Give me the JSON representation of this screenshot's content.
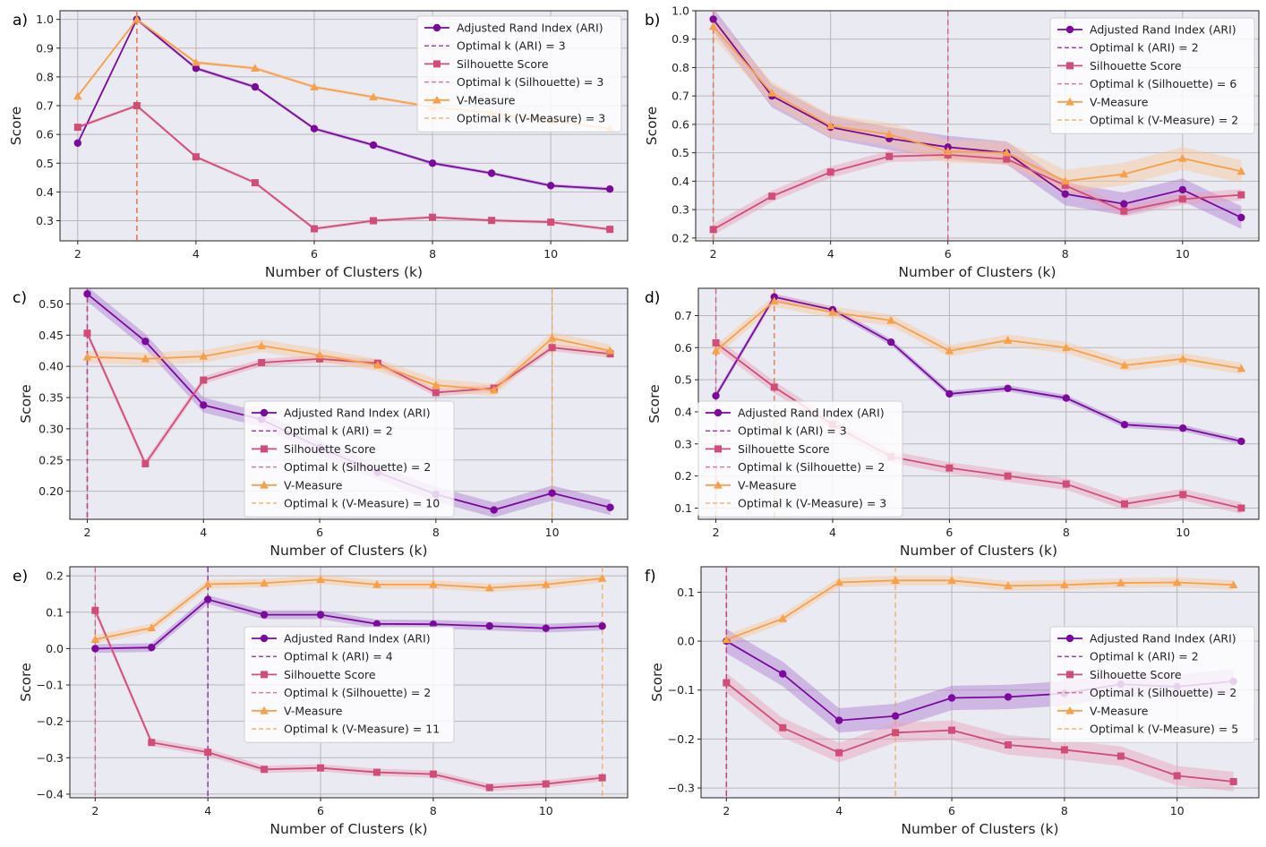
{
  "figure": {
    "panel_count": 6
  },
  "colors": {
    "ari": "#7b0a9c",
    "ari_band": "#b07ad0",
    "sil": "#d14d78",
    "sil_band": "#e8a0b6",
    "vm": "#f7a04a",
    "vm_band": "#f8c79a",
    "axes_bg": "#eaeaf2",
    "grid": "#b8b8b8"
  },
  "chart_data": [
    {
      "panel_label": "a)",
      "type": "line",
      "xlabel": "Number of Clusters (k)",
      "ylabel": "Score",
      "xlim": [
        1.7,
        11.3
      ],
      "ylim": [
        0.23,
        1.03
      ],
      "xticks": [
        2,
        4,
        6,
        8,
        10
      ],
      "xtick_labels": [
        "2",
        "4",
        "6",
        "8",
        "10"
      ],
      "yticks": [
        0.3,
        0.4,
        0.5,
        0.6,
        0.7,
        0.8,
        0.9,
        1.0
      ],
      "ytick_labels": [
        "0.3",
        "0.4",
        "0.5",
        "0.6",
        "0.7",
        "0.8",
        "0.9",
        "1.0"
      ],
      "x": [
        2,
        3,
        4,
        5,
        6,
        7,
        8,
        9,
        10,
        11
      ],
      "legend_position": "top-right",
      "series": [
        {
          "key": "ari",
          "name": "Adjusted Rand Index (ARI)",
          "marker": "circle",
          "values": [
            0.57,
            1.0,
            0.83,
            0.765,
            0.62,
            0.563,
            0.5,
            0.465,
            0.422,
            0.41
          ],
          "band": 0.006
        },
        {
          "key": "sil",
          "name": "Silhouette Score",
          "marker": "square",
          "values": [
            0.625,
            0.7,
            0.522,
            0.432,
            0.272,
            0.3,
            0.312,
            0.301,
            0.295,
            0.27
          ],
          "band": 0.006
        },
        {
          "key": "vm",
          "name": "V-Measure",
          "marker": "triangle",
          "values": [
            0.733,
            1.0,
            0.85,
            0.83,
            0.765,
            0.73,
            0.695,
            0.675,
            0.648,
            0.62
          ],
          "band": 0.006
        }
      ],
      "optimal_lines": [
        {
          "key": "ari",
          "label": "Optimal k (ARI) = 3",
          "k": 3
        },
        {
          "key": "sil",
          "label": "Optimal k (Silhouette) = 3",
          "k": 3
        },
        {
          "key": "vm",
          "label": "Optimal k (V-Measure) = 3",
          "k": 3
        }
      ]
    },
    {
      "panel_label": "b)",
      "type": "line",
      "xlabel": "Number of Clusters (k)",
      "ylabel": "Score",
      "xlim": [
        1.7,
        11.3
      ],
      "ylim": [
        0.19,
        1.0
      ],
      "xticks": [
        2,
        4,
        6,
        8,
        10
      ],
      "xtick_labels": [
        "2",
        "4",
        "6",
        "8",
        "10"
      ],
      "yticks": [
        0.2,
        0.3,
        0.4,
        0.5,
        0.6,
        0.7,
        0.8,
        0.9,
        1.0
      ],
      "ytick_labels": [
        "0.2",
        "0.3",
        "0.4",
        "0.5",
        "0.6",
        "0.7",
        "0.8",
        "0.9",
        "1.0"
      ],
      "x": [
        2,
        3,
        4,
        5,
        6,
        7,
        8,
        9,
        10,
        11
      ],
      "legend_position": "top-right",
      "series": [
        {
          "key": "ari",
          "name": "Adjusted Rand Index (ARI)",
          "marker": "circle",
          "values": [
            0.97,
            0.7,
            0.59,
            0.55,
            0.52,
            0.5,
            0.355,
            0.32,
            0.37,
            0.272
          ],
          "band": 0.04
        },
        {
          "key": "sil",
          "name": "Silhouette Score",
          "marker": "square",
          "values": [
            0.23,
            0.347,
            0.432,
            0.487,
            0.493,
            0.478,
            0.385,
            0.295,
            0.337,
            0.352
          ],
          "band": 0.02
        },
        {
          "key": "vm",
          "name": "V-Measure",
          "marker": "triangle",
          "values": [
            0.945,
            0.71,
            0.595,
            0.565,
            0.505,
            0.5,
            0.4,
            0.425,
            0.48,
            0.435
          ],
          "band": 0.04
        }
      ],
      "optimal_lines": [
        {
          "key": "ari",
          "label": "Optimal k (ARI) = 2",
          "k": 2
        },
        {
          "key": "sil",
          "label": "Optimal k (Silhouette) = 6",
          "k": 6
        },
        {
          "key": "vm",
          "label": "Optimal k (V-Measure) = 2",
          "k": 2
        }
      ]
    },
    {
      "panel_label": "c)",
      "type": "line",
      "xlabel": "Number of Clusters (k)",
      "ylabel": "Score",
      "xlim": [
        1.7,
        11.3
      ],
      "ylim": [
        0.155,
        0.525
      ],
      "xticks": [
        2,
        4,
        6,
        8,
        10
      ],
      "xtick_labels": [
        "2",
        "4",
        "6",
        "8",
        "10"
      ],
      "yticks": [
        0.2,
        0.25,
        0.3,
        0.35,
        0.4,
        0.45,
        0.5
      ],
      "ytick_labels": [
        "0.20",
        "0.25",
        "0.30",
        "0.35",
        "0.40",
        "0.45",
        "0.50"
      ],
      "x": [
        2,
        3,
        4,
        5,
        6,
        7,
        8,
        9,
        10,
        11
      ],
      "legend_position": "center",
      "series": [
        {
          "key": "ari",
          "name": "Adjusted Rand Index (ARI)",
          "marker": "circle",
          "values": [
            0.516,
            0.44,
            0.338,
            0.315,
            0.27,
            0.23,
            0.195,
            0.17,
            0.197,
            0.174
          ],
          "band": 0.012
        },
        {
          "key": "sil",
          "name": "Silhouette Score",
          "marker": "square",
          "values": [
            0.453,
            0.244,
            0.378,
            0.406,
            0.412,
            0.405,
            0.358,
            0.365,
            0.43,
            0.42
          ],
          "band": 0.006
        },
        {
          "key": "vm",
          "name": "V-Measure",
          "marker": "triangle",
          "values": [
            0.415,
            0.412,
            0.416,
            0.433,
            0.418,
            0.402,
            0.37,
            0.362,
            0.445,
            0.425
          ],
          "band": 0.01
        }
      ],
      "optimal_lines": [
        {
          "key": "ari",
          "label": "Optimal k (ARI) = 2",
          "k": 2
        },
        {
          "key": "sil",
          "label": "Optimal k (Silhouette) = 2",
          "k": 2
        },
        {
          "key": "vm",
          "label": "Optimal k (V-Measure) = 10",
          "k": 10
        }
      ]
    },
    {
      "panel_label": "d)",
      "type": "line",
      "xlabel": "Number of Clusters (k)",
      "ylabel": "Score",
      "xlim": [
        1.7,
        11.3
      ],
      "ylim": [
        0.065,
        0.785
      ],
      "xticks": [
        2,
        4,
        6,
        8,
        10
      ],
      "xtick_labels": [
        "2",
        "4",
        "6",
        "8",
        "10"
      ],
      "yticks": [
        0.1,
        0.2,
        0.3,
        0.4,
        0.5,
        0.6,
        0.7
      ],
      "ytick_labels": [
        "0.1",
        "0.2",
        "0.3",
        "0.4",
        "0.5",
        "0.6",
        "0.7"
      ],
      "x": [
        2,
        3,
        4,
        5,
        6,
        7,
        8,
        9,
        10,
        11
      ],
      "legend_position": "lower-left",
      "series": [
        {
          "key": "ari",
          "name": "Adjusted Rand Index (ARI)",
          "marker": "circle",
          "values": [
            0.45,
            0.758,
            0.718,
            0.617,
            0.456,
            0.473,
            0.443,
            0.36,
            0.349,
            0.308
          ],
          "band": 0.01
        },
        {
          "key": "sil",
          "name": "Silhouette Score",
          "marker": "square",
          "values": [
            0.615,
            0.477,
            0.36,
            0.26,
            0.225,
            0.2,
            0.175,
            0.113,
            0.142,
            0.1
          ],
          "band": 0.018
        },
        {
          "key": "vm",
          "name": "V-Measure",
          "marker": "triangle",
          "values": [
            0.59,
            0.745,
            0.71,
            0.685,
            0.59,
            0.623,
            0.6,
            0.545,
            0.565,
            0.535
          ],
          "band": 0.018
        }
      ],
      "optimal_lines": [
        {
          "key": "ari",
          "label": "Optimal k (ARI) = 3",
          "k": 3
        },
        {
          "key": "sil",
          "label": "Optimal k (Silhouette) = 2",
          "k": 2
        },
        {
          "key": "vm",
          "label": "Optimal k (V-Measure) = 3",
          "k": 3
        }
      ]
    },
    {
      "panel_label": "e)",
      "type": "line",
      "xlabel": "Number of Clusters (k)",
      "ylabel": "Score",
      "xlim": [
        1.55,
        11.45
      ],
      "ylim": [
        -0.41,
        0.225
      ],
      "xticks": [
        2,
        4,
        6,
        8,
        10
      ],
      "xtick_labels": [
        "2",
        "4",
        "6",
        "8",
        "10"
      ],
      "yticks": [
        -0.4,
        -0.3,
        -0.2,
        -0.1,
        0.0,
        0.1,
        0.2
      ],
      "ytick_labels": [
        "−0.4",
        "−0.3",
        "−0.2",
        "−0.1",
        "0.0",
        "0.1",
        "0.2"
      ],
      "x": [
        2,
        3,
        4,
        5,
        6,
        7,
        8,
        9,
        10,
        11
      ],
      "legend_position": "center",
      "series": [
        {
          "key": "ari",
          "name": "Adjusted Rand Index (ARI)",
          "marker": "circle",
          "values": [
            0.0,
            0.003,
            0.135,
            0.093,
            0.093,
            0.068,
            0.067,
            0.062,
            0.056,
            0.062
          ],
          "band": 0.012
        },
        {
          "key": "sil",
          "name": "Silhouette Score",
          "marker": "square",
          "values": [
            0.105,
            -0.258,
            -0.285,
            -0.332,
            -0.328,
            -0.34,
            -0.345,
            -0.382,
            -0.372,
            -0.355
          ],
          "band": 0.01
        },
        {
          "key": "vm",
          "name": "V-Measure",
          "marker": "triangle",
          "values": [
            0.025,
            0.057,
            0.177,
            0.18,
            0.19,
            0.176,
            0.176,
            0.167,
            0.176,
            0.193
          ],
          "band": 0.012
        }
      ],
      "optimal_lines": [
        {
          "key": "ari",
          "label": "Optimal k (ARI) = 4",
          "k": 4
        },
        {
          "key": "sil",
          "label": "Optimal k (Silhouette) = 2",
          "k": 2
        },
        {
          "key": "vm",
          "label": "Optimal k (V-Measure) = 11",
          "k": 11
        }
      ]
    },
    {
      "panel_label": "f)",
      "type": "line",
      "xlabel": "Number of Clusters (k)",
      "ylabel": "Score",
      "xlim": [
        1.55,
        11.45
      ],
      "ylim": [
        -0.32,
        0.152
      ],
      "xticks": [
        2,
        4,
        6,
        8,
        10
      ],
      "xtick_labels": [
        "2",
        "4",
        "6",
        "8",
        "10"
      ],
      "yticks": [
        -0.3,
        -0.2,
        -0.1,
        0.0,
        0.1
      ],
      "ytick_labels": [
        "−0.3",
        "−0.2",
        "−0.1",
        "0.0",
        "0.1"
      ],
      "x": [
        2,
        3,
        4,
        5,
        6,
        7,
        8,
        9,
        10,
        11
      ],
      "legend_position": "center-right",
      "series": [
        {
          "key": "ari",
          "name": "Adjusted Rand Index (ARI)",
          "marker": "circle",
          "values": [
            0.0,
            -0.067,
            -0.162,
            -0.153,
            -0.116,
            -0.114,
            -0.107,
            -0.088,
            -0.093,
            -0.082
          ],
          "band": 0.025
        },
        {
          "key": "sil",
          "name": "Silhouette Score",
          "marker": "square",
          "values": [
            -0.085,
            -0.177,
            -0.228,
            -0.187,
            -0.182,
            -0.212,
            -0.222,
            -0.235,
            -0.275,
            -0.287
          ],
          "band": 0.02
        },
        {
          "key": "vm",
          "name": "V-Measure",
          "marker": "triangle",
          "values": [
            0.003,
            0.046,
            0.12,
            0.124,
            0.124,
            0.113,
            0.115,
            0.119,
            0.12,
            0.115
          ],
          "band": 0.01
        }
      ],
      "optimal_lines": [
        {
          "key": "ari",
          "label": "Optimal k (ARI) = 2",
          "k": 2
        },
        {
          "key": "sil",
          "label": "Optimal k (Silhouette) = 2",
          "k": 2
        },
        {
          "key": "vm",
          "label": "Optimal k (V-Measure) = 5",
          "k": 5
        }
      ]
    }
  ]
}
